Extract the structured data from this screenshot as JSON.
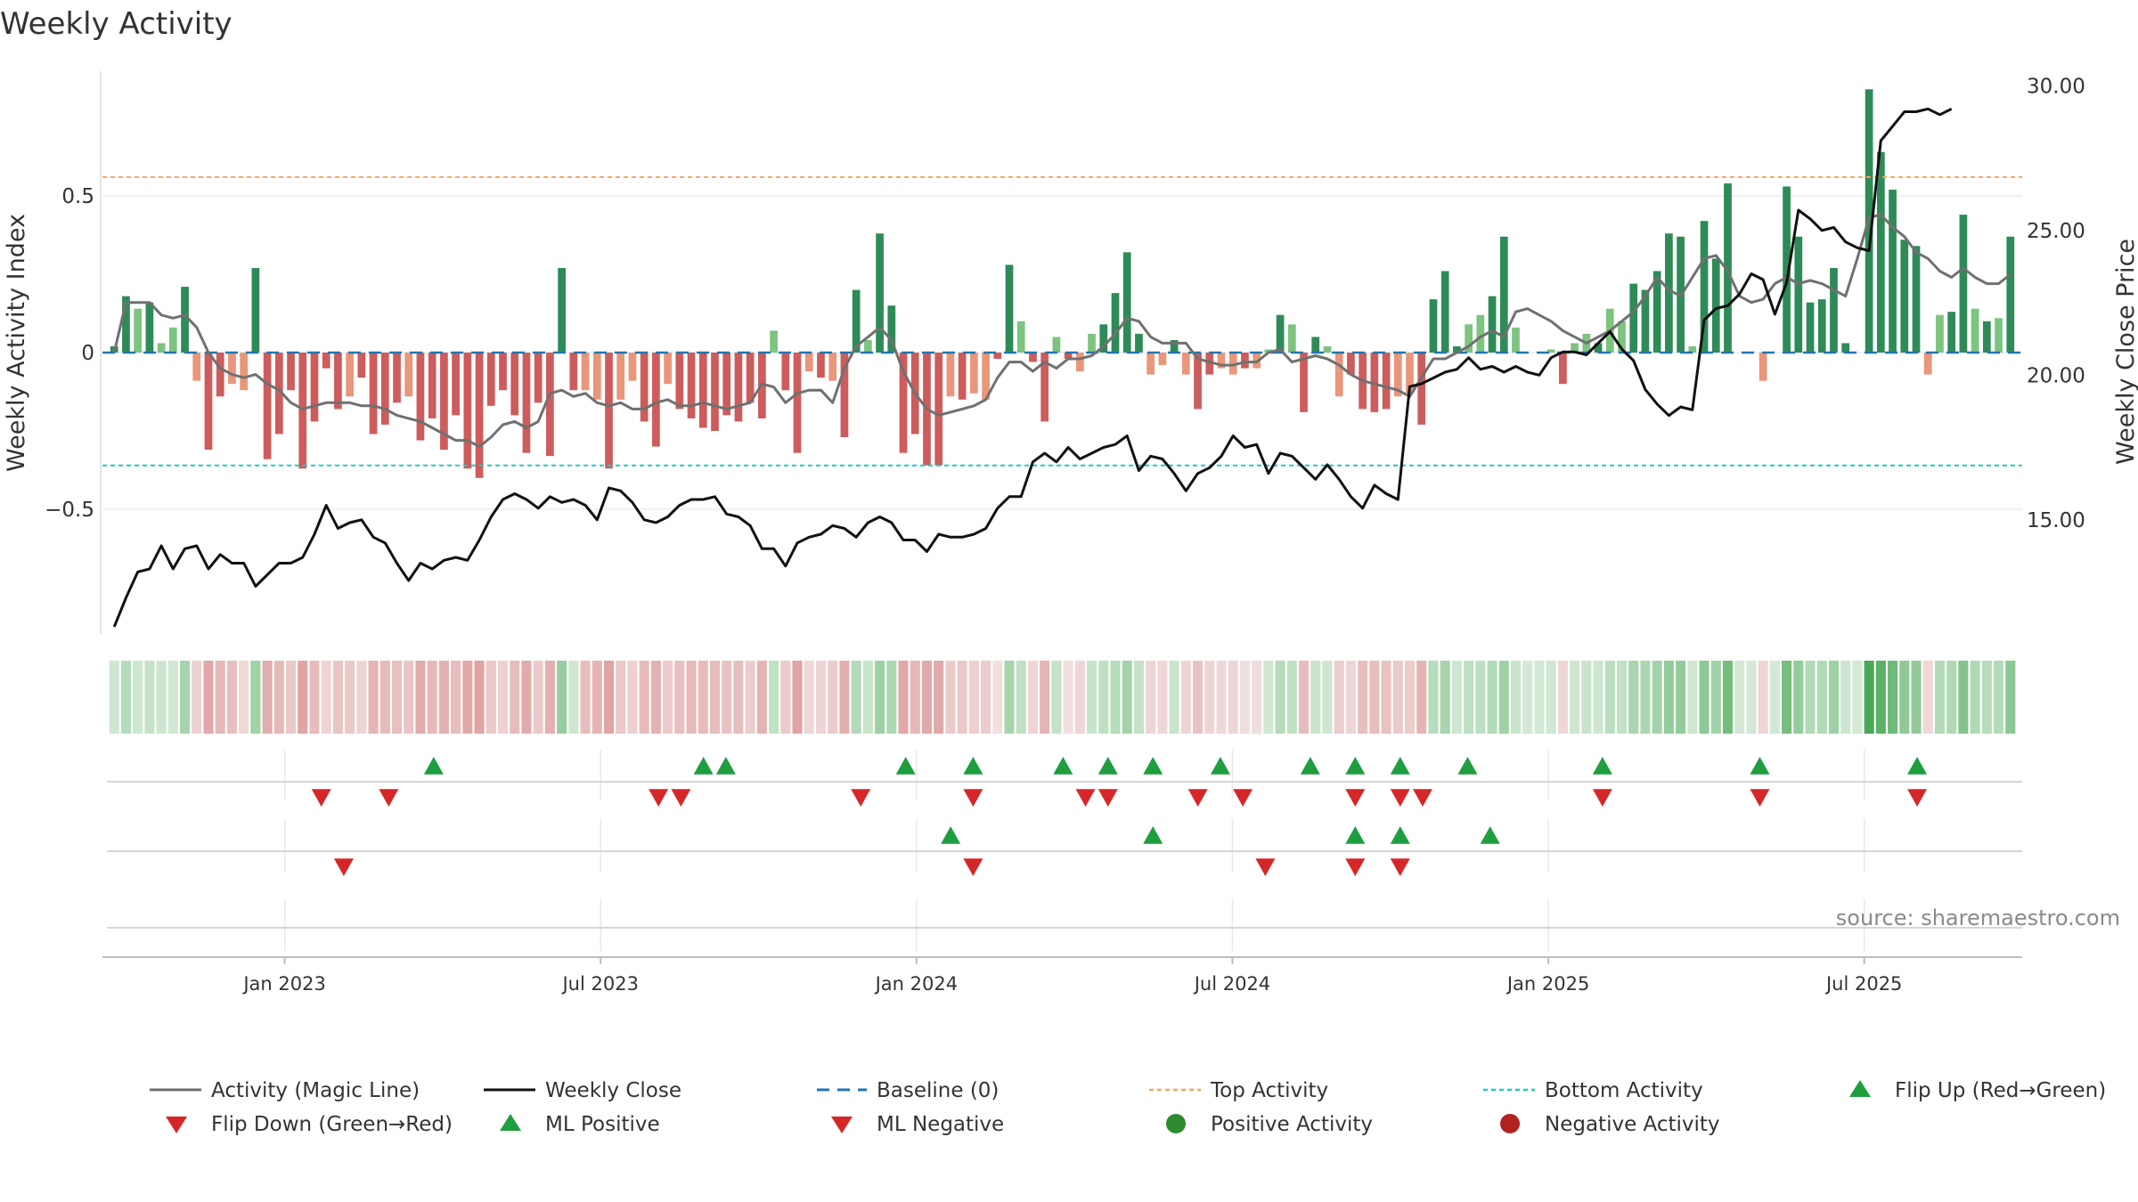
{
  "chart_data": {
    "type": "bar",
    "title": "Weekly Activity",
    "ylabel": "Weekly Activity Index",
    "y2label": "Weekly Close Price",
    "ylim": [
      -0.85,
      0.88
    ],
    "y2lim": [
      10.5,
      30.5
    ],
    "xlim_weeks": [
      -1,
      157
    ],
    "yticks": [
      {
        "v": 0.5,
        "label": "0.5"
      },
      {
        "v": 0,
        "label": "0"
      },
      {
        "v": -0.5,
        "label": "−0.5"
      }
    ],
    "y2ticks": [
      {
        "v": 30,
        "label": "30.00"
      },
      {
        "v": 25,
        "label": "25.00"
      },
      {
        "v": 20,
        "label": "20.00"
      },
      {
        "v": 15,
        "label": "15.00"
      }
    ],
    "xticks": [
      {
        "week": 14,
        "label": "Jan 2023"
      },
      {
        "week": 40,
        "label": "Jul 2023"
      },
      {
        "week": 66,
        "label": "Jan 2024"
      },
      {
        "week": 92,
        "label": "Jul 2024"
      },
      {
        "week": 118,
        "label": "Jan 2025"
      },
      {
        "week": 144,
        "label": "Jul 2025"
      }
    ],
    "top_activity": 0.56,
    "bottom_activity": -0.36,
    "baseline": 0,
    "activity": [
      0.02,
      0.18,
      0.14,
      0.16,
      0.03,
      0.08,
      0.21,
      -0.09,
      -0.31,
      -0.14,
      -0.1,
      -0.12,
      0.27,
      -0.34,
      -0.26,
      -0.12,
      -0.37,
      -0.22,
      -0.05,
      -0.18,
      -0.14,
      -0.08,
      -0.26,
      -0.23,
      -0.16,
      -0.14,
      -0.28,
      -0.21,
      -0.31,
      -0.2,
      -0.37,
      -0.4,
      -0.17,
      -0.12,
      -0.2,
      -0.32,
      -0.16,
      -0.33,
      0.27,
      -0.12,
      -0.12,
      -0.15,
      -0.37,
      -0.15,
      -0.09,
      -0.22,
      -0.3,
      -0.1,
      -0.18,
      -0.21,
      -0.24,
      -0.25,
      -0.2,
      -0.22,
      -0.16,
      -0.21,
      0.07,
      -0.12,
      -0.32,
      -0.06,
      -0.08,
      -0.09,
      -0.27,
      0.2,
      0.04,
      0.38,
      0.15,
      -0.32,
      -0.26,
      -0.36,
      -0.36,
      -0.14,
      -0.15,
      -0.13,
      -0.15,
      -0.02,
      0.28,
      0.1,
      -0.03,
      -0.22,
      0.05,
      -0.02,
      -0.06,
      0.06,
      0.09,
      0.19,
      0.32,
      0.06,
      -0.07,
      -0.04,
      0.04,
      -0.07,
      -0.18,
      -0.07,
      -0.05,
      -0.07,
      -0.05,
      -0.05,
      0.01,
      0.12,
      0.09,
      -0.19,
      0.05,
      0.02,
      -0.14,
      -0.07,
      -0.18,
      -0.19,
      -0.18,
      -0.14,
      -0.13,
      -0.23,
      0.17,
      0.26,
      0.02,
      0.09,
      0.12,
      0.18,
      0.37,
      0.08,
      0.0,
      0.0,
      0.01,
      -0.1,
      0.03,
      0.06,
      0.03,
      0.14,
      0.1,
      0.22,
      0.2,
      0.26,
      0.38,
      0.37,
      0.02,
      0.42,
      0.3,
      0.54,
      0.0,
      0.0,
      -0.09,
      0.0,
      0.53,
      0.37,
      0.16,
      0.17,
      0.27,
      0.03,
      0.0,
      0.84,
      0.64,
      0.52,
      0.36,
      0.34,
      -0.07,
      0.12,
      0.13,
      0.44,
      0.14,
      0.1,
      0.11,
      0.37
    ],
    "magic_line": [
      0.0,
      0.16,
      0.16,
      0.16,
      0.12,
      0.11,
      0.12,
      0.08,
      0.0,
      -0.05,
      -0.07,
      -0.08,
      -0.07,
      -0.1,
      -0.12,
      -0.16,
      -0.18,
      -0.17,
      -0.16,
      -0.16,
      -0.16,
      -0.17,
      -0.17,
      -0.18,
      -0.2,
      -0.21,
      -0.22,
      -0.24,
      -0.26,
      -0.28,
      -0.28,
      -0.3,
      -0.27,
      -0.23,
      -0.22,
      -0.24,
      -0.22,
      -0.13,
      -0.12,
      -0.14,
      -0.13,
      -0.16,
      -0.17,
      -0.16,
      -0.18,
      -0.18,
      -0.16,
      -0.15,
      -0.17,
      -0.17,
      -0.16,
      -0.17,
      -0.18,
      -0.17,
      -0.16,
      -0.1,
      -0.11,
      -0.16,
      -0.13,
      -0.12,
      -0.12,
      -0.16,
      -0.05,
      0.02,
      0.05,
      0.08,
      0.04,
      -0.06,
      -0.13,
      -0.18,
      -0.2,
      -0.19,
      -0.18,
      -0.17,
      -0.15,
      -0.08,
      -0.03,
      -0.03,
      -0.06,
      -0.03,
      -0.05,
      -0.02,
      -0.02,
      -0.01,
      0.02,
      0.06,
      0.11,
      0.1,
      0.05,
      0.03,
      0.03,
      0.03,
      -0.02,
      -0.03,
      -0.04,
      -0.04,
      -0.03,
      -0.03,
      0.0,
      0.01,
      -0.03,
      -0.02,
      -0.01,
      -0.02,
      -0.04,
      -0.07,
      -0.09,
      -0.1,
      -0.11,
      -0.12,
      -0.14,
      -0.08,
      -0.02,
      -0.02,
      0.0,
      0.02,
      0.05,
      0.07,
      0.05,
      0.13,
      0.14,
      0.12,
      0.1,
      0.07,
      0.05,
      0.03,
      0.05,
      0.07,
      0.1,
      0.13,
      0.18,
      0.24,
      0.2,
      0.18,
      0.24,
      0.3,
      0.31,
      0.26,
      0.18,
      0.16,
      0.17,
      0.22,
      0.24,
      0.22,
      0.23,
      0.22,
      0.2,
      0.18,
      0.3,
      0.43,
      0.44,
      0.4,
      0.37,
      0.32,
      0.3,
      0.26,
      0.24,
      0.27,
      0.24,
      0.22,
      0.22,
      0.25
    ],
    "weekly_close": [
      11.3,
      12.3,
      13.2,
      13.3,
      14.1,
      13.3,
      14.0,
      14.1,
      13.3,
      13.8,
      13.5,
      13.5,
      12.7,
      13.1,
      13.5,
      13.5,
      13.7,
      14.5,
      15.5,
      14.7,
      14.9,
      15.0,
      14.4,
      14.2,
      13.5,
      12.9,
      13.5,
      13.3,
      13.6,
      13.7,
      13.6,
      14.3,
      15.1,
      15.7,
      15.9,
      15.7,
      15.4,
      15.8,
      15.6,
      15.7,
      15.5,
      15.0,
      16.1,
      16.0,
      15.6,
      15.0,
      14.9,
      15.1,
      15.5,
      15.7,
      15.7,
      15.8,
      15.2,
      15.1,
      14.8,
      14.0,
      14.0,
      13.4,
      14.2,
      14.4,
      14.5,
      14.8,
      14.7,
      14.4,
      14.9,
      15.1,
      14.9,
      14.3,
      14.3,
      13.9,
      14.5,
      14.4,
      14.4,
      14.5,
      14.7,
      15.4,
      15.8,
      15.8,
      17.0,
      17.3,
      17.0,
      17.5,
      17.1,
      17.3,
      17.5,
      17.6,
      17.9,
      16.7,
      17.2,
      17.1,
      16.6,
      16.0,
      16.6,
      16.8,
      17.2,
      17.9,
      17.5,
      17.6,
      16.6,
      17.3,
      17.2,
      16.8,
      16.4,
      16.9,
      16.4,
      15.8,
      15.4,
      16.2,
      15.9,
      15.7,
      19.6,
      19.7,
      19.9,
      20.1,
      20.2,
      20.6,
      20.2,
      20.3,
      20.1,
      20.3,
      20.1,
      20.0,
      20.6,
      20.8,
      20.8,
      20.7,
      21.1,
      21.5,
      20.9,
      20.5,
      19.5,
      19.0,
      18.6,
      18.9,
      18.8,
      21.9,
      22.3,
      22.4,
      22.8,
      23.5,
      23.3,
      22.1,
      23.2,
      25.7,
      25.4,
      25.0,
      25.1,
      24.6,
      24.4,
      24.3,
      28.1,
      28.6,
      29.1,
      29.1,
      29.2,
      29.0,
      29.2
    ],
    "strip_colors": [
      "#cfe7d1",
      "#b7dcbc",
      "#cce7cf",
      "#c5e2c9",
      "#cde5cf",
      "#d1e6d3",
      "#a6d3ac",
      "#ead1d1",
      "#e2a8a9",
      "#e6b8b7",
      "#e6c0c0",
      "#eed9d8",
      "#a0d3a6",
      "#dfaeae",
      "#e4b9b8",
      "#eac9c9",
      "#e0a4a3",
      "#e6bcbc",
      "#efd4d3",
      "#e8c4c3",
      "#ebc9c9",
      "#eed3d3",
      "#e5b5b4",
      "#e7bbba",
      "#e8c0c0",
      "#e9c6c5",
      "#e2acab",
      "#e6b9b8",
      "#e3b1b1",
      "#e7bebe",
      "#e1aaaa",
      "#e0a4a3",
      "#eac8c8",
      "#ecd1d0",
      "#e6bdbc",
      "#e1abaa",
      "#ebcacb",
      "#e3afaf",
      "#97cd9f",
      "#cfe6d1",
      "#e6bebd",
      "#e5b5b4",
      "#e0a4a3",
      "#eac9c8",
      "#ecd1d0",
      "#e6bbba",
      "#e3b1b1",
      "#ebcbcb",
      "#e7c0c0",
      "#e6baba",
      "#e6bbba",
      "#e6bcbc",
      "#e8c2c2",
      "#e7bebe",
      "#ebcdcd",
      "#e4b4b3",
      "#bfe1c4",
      "#ebcbcb",
      "#e0a4a3",
      "#efd8d8",
      "#eed5d5",
      "#ebcbcb",
      "#e3afae",
      "#b3d9b8",
      "#c8e4cb",
      "#9dd1a4",
      "#aed7b3",
      "#e2a8a8",
      "#e6b8b7",
      "#e1aaaa",
      "#e1aaaa",
      "#ebcac9",
      "#eac9c8",
      "#eccfce",
      "#ebcbcb",
      "#f1e0e0",
      "#a7d4ad",
      "#c0e0c4",
      "#efd6d6",
      "#e4b5b5",
      "#c4e2c8",
      "#f1e0e0",
      "#eed7d7",
      "#c6e4ca",
      "#bde0c2",
      "#b6dcbb",
      "#a4d3aa",
      "#c3e2c8",
      "#eed5d5",
      "#efd7d7",
      "#c9e5cc",
      "#eed5d5",
      "#e8c3c3",
      "#eed5d5",
      "#efd8d8",
      "#eed5d5",
      "#f0dddd",
      "#f0dddd",
      "#d0e7d2",
      "#b5dbba",
      "#c1e1c5",
      "#e6bdbc",
      "#c8e4cb",
      "#cde6d0",
      "#ebcdcd",
      "#eed5d5",
      "#e7bfbe",
      "#e6bebd",
      "#e8c1c1",
      "#eac9c9",
      "#ebcdcc",
      "#e4b5b4",
      "#b8ddbd",
      "#a6d4ac",
      "#cfe6d1",
      "#bee0c2",
      "#bbdfc0",
      "#b4dbb9",
      "#a0d2a7",
      "#c8e4cb",
      "#d3e8d5",
      "#d3e8d5",
      "#d0e7d2",
      "#eed7d7",
      "#cde6d0",
      "#c9e4cc",
      "#cde6d0",
      "#badfbf",
      "#c0e1c4",
      "#a9d5af",
      "#add7b2",
      "#a4d3aa",
      "#94cb9b",
      "#93cb9a",
      "#d0e7d2",
      "#8dc995",
      "#a0d2a7",
      "#74bd7d",
      "#d3e8d5",
      "#d3e8d5",
      "#efd6d6",
      "#d3e8d5",
      "#76be7f",
      "#93cb9a",
      "#b3dab8",
      "#b2dab7",
      "#9fd1a6",
      "#cde6d0",
      "#d3e8d5",
      "#4aa957",
      "#5bb167",
      "#6eba79",
      "#8fc997",
      "#92ca99",
      "#efd8d8",
      "#b3dab8",
      "#b1d9b6",
      "#86c48e",
      "#b0d9b5",
      "#b8ddbd",
      "#b4dbb9",
      "#8bc793"
    ],
    "flip_up": [
      8,
      20,
      21,
      29,
      32,
      36,
      38,
      40,
      43,
      47,
      49,
      51,
      54,
      60,
      67,
      74
    ],
    "flip_down": [
      3,
      6,
      18,
      19,
      27,
      32,
      37,
      38,
      42,
      44,
      49,
      51,
      52,
      60,
      67,
      74
    ],
    "ml_positive": [
      31,
      40,
      49,
      51,
      55
    ],
    "ml_negative": [
      4,
      32,
      45,
      49,
      51
    ],
    "source_text": "source: sharemaestro.com",
    "legend": [
      {
        "label": "Activity (Magic Line)",
        "kind": "line",
        "color": "#707070"
      },
      {
        "label": "Weekly Close",
        "kind": "line",
        "color": "#111111"
      },
      {
        "label": "Baseline (0)",
        "kind": "dashed",
        "color": "#1f77b4"
      },
      {
        "label": "Top Activity",
        "kind": "dotted",
        "color": "#f4a460"
      },
      {
        "label": "Bottom Activity",
        "kind": "dotted",
        "color": "#20c9c9"
      },
      {
        "label": "Flip Up (Red→Green)",
        "kind": "tri-up",
        "color": "#1f9e3f"
      },
      {
        "label": "Flip Down (Green→Red)",
        "kind": "tri-down",
        "color": "#d62728"
      },
      {
        "label": "ML Positive",
        "kind": "tri-up",
        "color": "#1f9e3f"
      },
      {
        "label": "ML Negative",
        "kind": "tri-down",
        "color": "#d62728"
      },
      {
        "label": "Positive Activity",
        "kind": "dot",
        "color": "#2e8b2e"
      },
      {
        "label": "Negative Activity",
        "kind": "dot",
        "color": "#b22222"
      }
    ],
    "colors": {
      "pos_strong": "#2e8b57",
      "pos_light": "#7cc47f",
      "neg_strong": "#cd5c5c",
      "neg_light": "#e9967a",
      "magic_line": "#707070",
      "close_line": "#111111",
      "baseline": "#1f77b4",
      "top": "#f4a460",
      "bottom": "#20c9c9",
      "up": "#1f9e3f",
      "down": "#d62728"
    }
  }
}
